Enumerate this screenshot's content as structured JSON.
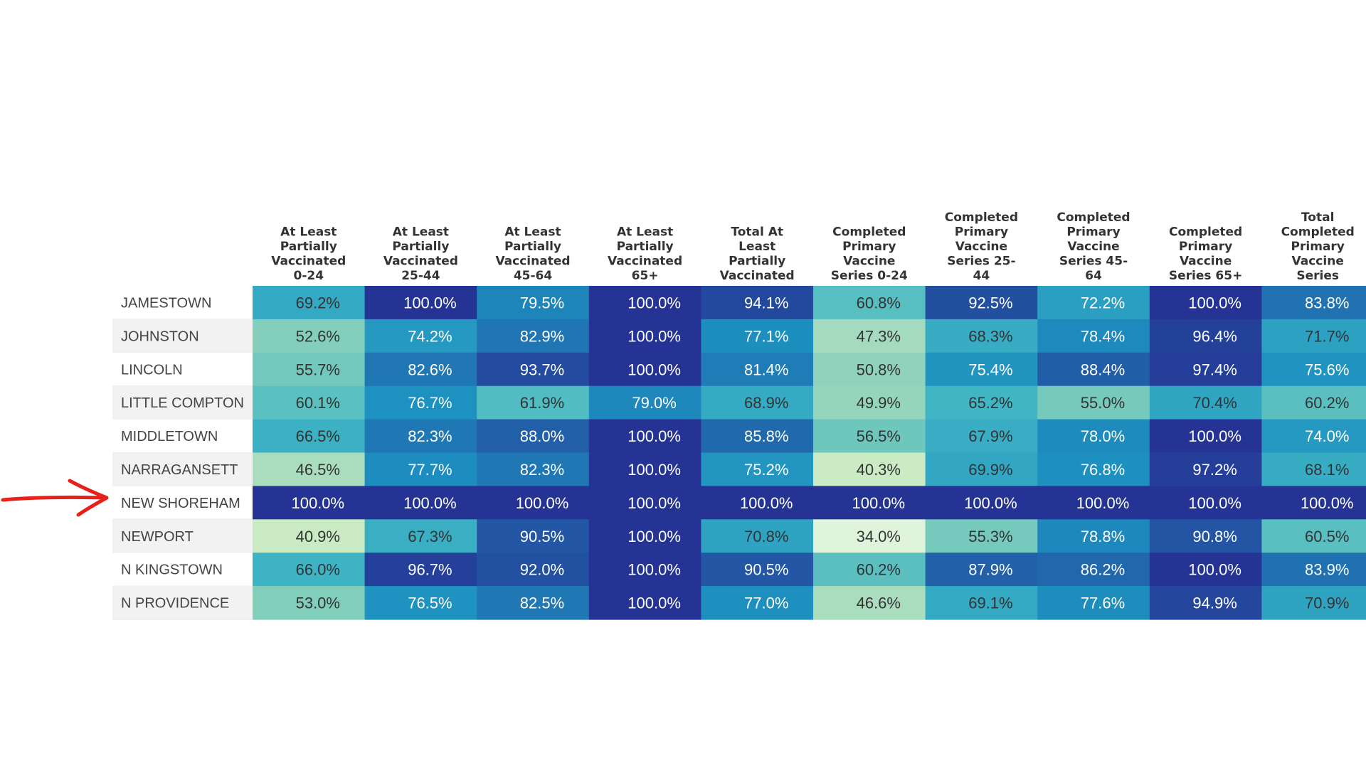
{
  "chart_data": {
    "type": "heatmap",
    "title": "",
    "xlabel": "",
    "ylabel": "",
    "columns": [
      [
        "At Least",
        "Partially",
        "Vaccinated",
        "0-24"
      ],
      [
        "At Least",
        "Partially",
        "Vaccinated",
        "25-44"
      ],
      [
        "At Least",
        "Partially",
        "Vaccinated",
        "45-64"
      ],
      [
        "At Least",
        "Partially",
        "Vaccinated",
        "65+"
      ],
      [
        "Total At",
        "Least",
        "Partially",
        "Vaccinated"
      ],
      [
        "Completed",
        "Primary",
        "Vaccine",
        "Series 0-24"
      ],
      [
        "Completed",
        "Primary",
        "Vaccine",
        "Series 25-",
        "44"
      ],
      [
        "Completed",
        "Primary",
        "Vaccine",
        "Series 45-",
        "64"
      ],
      [
        "Completed",
        "Primary",
        "Vaccine",
        "Series 65+"
      ],
      [
        "Total",
        "Completed",
        "Primary",
        "Vaccine",
        "Series"
      ]
    ],
    "rows": [
      "JAMESTOWN",
      "JOHNSTON",
      "LINCOLN",
      "LITTLE COMPTON",
      "MIDDLETOWN",
      "NARRAGANSETT",
      "NEW SHOREHAM",
      "NEWPORT",
      "N KINGSTOWN",
      "N PROVIDENCE"
    ],
    "values": [
      [
        69.2,
        100.0,
        79.5,
        100.0,
        94.1,
        60.8,
        92.5,
        72.2,
        100.0,
        83.8
      ],
      [
        52.6,
        74.2,
        82.9,
        100.0,
        77.1,
        47.3,
        68.3,
        78.4,
        96.4,
        71.7
      ],
      [
        55.7,
        82.6,
        93.7,
        100.0,
        81.4,
        50.8,
        75.4,
        88.4,
        97.4,
        75.6
      ],
      [
        60.1,
        76.7,
        61.9,
        79.0,
        68.9,
        49.9,
        65.2,
        55.0,
        70.4,
        60.2
      ],
      [
        66.5,
        82.3,
        88.0,
        100.0,
        85.8,
        56.5,
        67.9,
        78.0,
        100.0,
        74.0
      ],
      [
        46.5,
        77.7,
        82.3,
        100.0,
        75.2,
        40.3,
        69.9,
        76.8,
        97.2,
        68.1
      ],
      [
        100.0,
        100.0,
        100.0,
        100.0,
        100.0,
        100.0,
        100.0,
        100.0,
        100.0,
        100.0
      ],
      [
        40.9,
        67.3,
        90.5,
        100.0,
        70.8,
        34.0,
        55.3,
        78.8,
        90.8,
        60.5
      ],
      [
        66.0,
        96.7,
        92.0,
        100.0,
        90.5,
        60.2,
        87.9,
        86.2,
        100.0,
        83.9
      ],
      [
        53.0,
        76.5,
        82.5,
        100.0,
        77.0,
        46.6,
        69.1,
        77.6,
        94.9,
        70.9
      ]
    ],
    "value_suffix": "%",
    "highlighted_row": "NEW SHOREHAM",
    "legend": "none",
    "grid": false
  },
  "colors": {
    "scale": [
      "#edf8e9",
      "#c7e9c0",
      "#7fcdbb",
      "#41b6c4",
      "#1d91c0",
      "#225ea8",
      "#253494"
    ],
    "row_label_bg_odd": "#f2f2f2",
    "row_label_bg_even": "#ffffff",
    "cell_text_light": "#ffffff",
    "cell_text_dark": "#333333",
    "arrow": "#e8201a"
  }
}
